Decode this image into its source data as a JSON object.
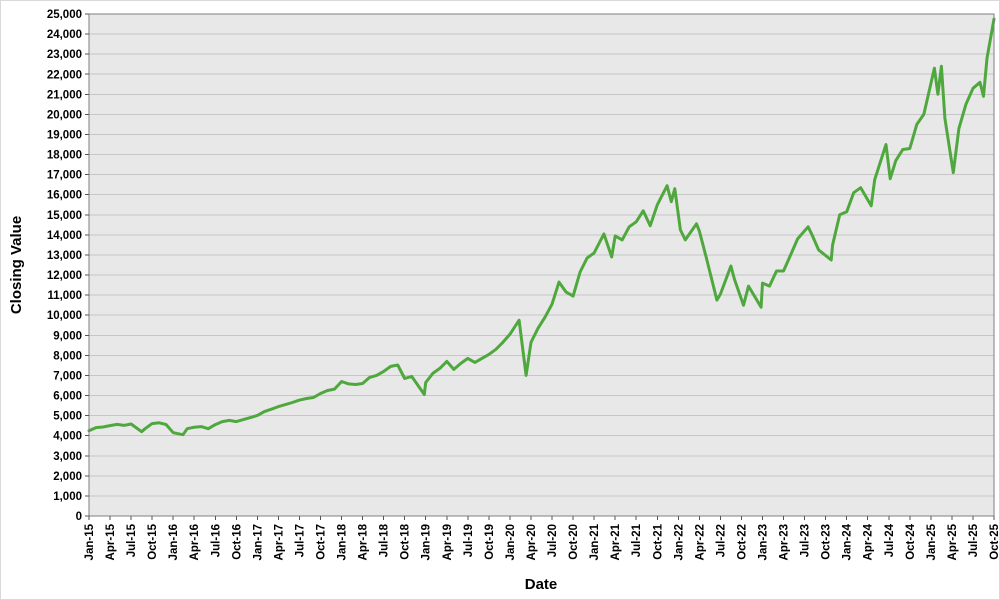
{
  "chart_data": {
    "type": "line",
    "title": "",
    "xlabel": "Date",
    "ylabel": "Closing Value",
    "x_unit": "months since Jan-2015",
    "xlim": [
      0,
      129
    ],
    "ylim": [
      0,
      25000
    ],
    "ytick_step": 1000,
    "x_tick_month_step": 3,
    "grid": "horizontal",
    "legend": "none",
    "plot_bg_color": "#e8e8e8",
    "grid_color": "#c6c6c6",
    "border_color": "#7f7f7f",
    "tick_color": "#555555",
    "x_tick_labels": [
      "Jan-15",
      "Apr-15",
      "Jul-15",
      "Oct-15",
      "Jan-16",
      "Apr-16",
      "Jul-16",
      "Oct-16",
      "Jan-17",
      "Apr-17",
      "Jul-17",
      "Oct-17",
      "Jan-18",
      "Apr-18",
      "Jul-18",
      "Oct-18",
      "Jan-19",
      "Apr-19",
      "Jul-19",
      "Oct-19",
      "Jan-20",
      "Apr-20",
      "Jul-20",
      "Oct-20",
      "Jan-21",
      "Apr-21",
      "Jul-21",
      "Oct-21",
      "Jan-22",
      "Apr-22",
      "Jul-22",
      "Oct-22",
      "Jan-23",
      "Apr-23",
      "Jul-23",
      "Oct-23",
      "Jan-24",
      "Apr-24",
      "Jul-24",
      "Oct-24",
      "Jan-25",
      "Apr-25",
      "Jul-25",
      "Oct-25"
    ],
    "y_tick_labels": [
      "0",
      "1,000",
      "2,000",
      "3,000",
      "4,000",
      "5,000",
      "6,000",
      "7,000",
      "8,000",
      "9,000",
      "10,000",
      "11,000",
      "12,000",
      "13,000",
      "14,000",
      "15,000",
      "16,000",
      "17,000",
      "18,000",
      "19,000",
      "20,000",
      "21,000",
      "22,000",
      "23,000",
      "24,000",
      "25,000"
    ],
    "series": [
      {
        "name": "Closing Value",
        "color": "#4fa83d",
        "stroke_width": 3,
        "points": [
          [
            0,
            4250
          ],
          [
            1,
            4400
          ],
          [
            2,
            4430
          ],
          [
            3,
            4500
          ],
          [
            4,
            4560
          ],
          [
            5,
            4510
          ],
          [
            6,
            4580
          ],
          [
            7.5,
            4200
          ],
          [
            8,
            4350
          ],
          [
            9,
            4600
          ],
          [
            10,
            4640
          ],
          [
            11,
            4550
          ],
          [
            12,
            4150
          ],
          [
            13.4,
            4050
          ],
          [
            14,
            4350
          ],
          [
            15,
            4420
          ],
          [
            16,
            4450
          ],
          [
            17,
            4350
          ],
          [
            18,
            4550
          ],
          [
            19,
            4700
          ],
          [
            20,
            4760
          ],
          [
            21,
            4700
          ],
          [
            22,
            4800
          ],
          [
            23,
            4900
          ],
          [
            24,
            5010
          ],
          [
            25,
            5200
          ],
          [
            26,
            5320
          ],
          [
            27,
            5450
          ],
          [
            28,
            5550
          ],
          [
            29,
            5650
          ],
          [
            30,
            5770
          ],
          [
            31,
            5850
          ],
          [
            32,
            5900
          ],
          [
            33,
            6100
          ],
          [
            34,
            6250
          ],
          [
            35,
            6320
          ],
          [
            36,
            6700
          ],
          [
            37,
            6580
          ],
          [
            38,
            6550
          ],
          [
            39,
            6600
          ],
          [
            40,
            6900
          ],
          [
            41,
            7000
          ],
          [
            42,
            7200
          ],
          [
            43,
            7450
          ],
          [
            44,
            7520
          ],
          [
            45,
            6850
          ],
          [
            46,
            6950
          ],
          [
            47.8,
            6050
          ],
          [
            48,
            6650
          ],
          [
            49,
            7100
          ],
          [
            50,
            7350
          ],
          [
            51,
            7700
          ],
          [
            52,
            7300
          ],
          [
            53,
            7600
          ],
          [
            54,
            7850
          ],
          [
            55,
            7650
          ],
          [
            56,
            7850
          ],
          [
            57,
            8050
          ],
          [
            58,
            8300
          ],
          [
            59,
            8650
          ],
          [
            60,
            9050
          ],
          [
            61.3,
            9750
          ],
          [
            62.3,
            7000
          ],
          [
            63,
            8650
          ],
          [
            64,
            9350
          ],
          [
            65,
            9900
          ],
          [
            66,
            10550
          ],
          [
            67,
            11650
          ],
          [
            68,
            11150
          ],
          [
            69,
            10950
          ],
          [
            70,
            12150
          ],
          [
            71,
            12850
          ],
          [
            72,
            13100
          ],
          [
            73.4,
            14050
          ],
          [
            74.5,
            12900
          ],
          [
            75,
            13950
          ],
          [
            76,
            13750
          ],
          [
            77,
            14400
          ],
          [
            78,
            14650
          ],
          [
            79,
            15200
          ],
          [
            80,
            14450
          ],
          [
            81,
            15500
          ],
          [
            82.4,
            16450
          ],
          [
            83,
            15650
          ],
          [
            83.5,
            16300
          ],
          [
            84.3,
            14250
          ],
          [
            85,
            13750
          ],
          [
            86.6,
            14550
          ],
          [
            87,
            14200
          ],
          [
            88,
            12850
          ],
          [
            89.5,
            10750
          ],
          [
            90,
            11050
          ],
          [
            91.5,
            12450
          ],
          [
            92,
            11800
          ],
          [
            93.3,
            10500
          ],
          [
            94,
            11450
          ],
          [
            95.8,
            10400
          ],
          [
            96,
            11600
          ],
          [
            97,
            11450
          ],
          [
            98,
            12200
          ],
          [
            99,
            12200
          ],
          [
            100,
            13000
          ],
          [
            101,
            13800
          ],
          [
            102.5,
            14400
          ],
          [
            103,
            14050
          ],
          [
            104,
            13250
          ],
          [
            105.8,
            12750
          ],
          [
            106,
            13500
          ],
          [
            107,
            15000
          ],
          [
            108,
            15150
          ],
          [
            109,
            16100
          ],
          [
            110,
            16350
          ],
          [
            111.5,
            15450
          ],
          [
            112,
            16750
          ],
          [
            113.6,
            18500
          ],
          [
            114.2,
            16800
          ],
          [
            115,
            17700
          ],
          [
            116,
            18250
          ],
          [
            117,
            18300
          ],
          [
            118,
            19500
          ],
          [
            119,
            20000
          ],
          [
            120.5,
            22300
          ],
          [
            121,
            21000
          ],
          [
            121.5,
            22400
          ],
          [
            122,
            19800
          ],
          [
            123.2,
            17100
          ],
          [
            124,
            19300
          ],
          [
            125,
            20500
          ],
          [
            126,
            21300
          ],
          [
            127,
            21600
          ],
          [
            127.5,
            20900
          ],
          [
            128,
            22800
          ],
          [
            129,
            24750
          ]
        ]
      }
    ]
  }
}
